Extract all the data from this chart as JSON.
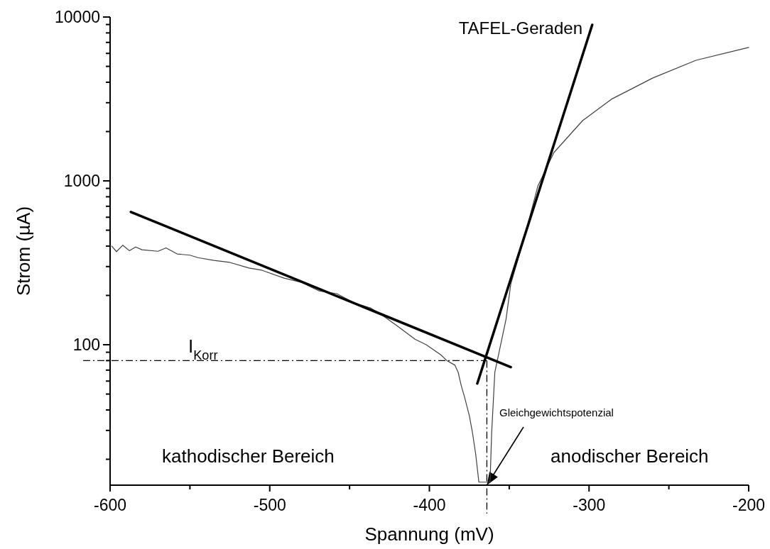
{
  "chart_data": {
    "type": "line",
    "xlabel": "Spannung (mV)",
    "ylabel": "Strom (µA)",
    "log": "y",
    "xlim": [
      -600,
      -200
    ],
    "ylim": [
      13.9,
      10000
    ],
    "xticks": [
      -600,
      {
        "value": -550,
        "label": null
      },
      -500,
      {
        "value": -450,
        "label": null
      },
      -400,
      {
        "value": -350,
        "label": null
      },
      -300,
      {
        "value": -250,
        "label": null
      },
      -200
    ],
    "yticks": [
      {
        "value": 20,
        "label": null
      },
      {
        "value": 30,
        "label": null
      },
      {
        "value": 40,
        "label": null
      },
      {
        "value": 50,
        "label": null
      },
      {
        "value": 60,
        "label": null
      },
      {
        "value": 70,
        "label": null
      },
      {
        "value": 80,
        "label": null
      },
      {
        "value": 90,
        "label": null
      },
      100,
      {
        "value": 200,
        "label": null
      },
      {
        "value": 300,
        "label": null
      },
      {
        "value": 400,
        "label": null
      },
      {
        "value": 500,
        "label": null
      },
      {
        "value": 600,
        "label": null
      },
      {
        "value": 700,
        "label": null
      },
      {
        "value": 800,
        "label": null
      },
      {
        "value": 900,
        "label": null
      },
      1000,
      {
        "value": 2000,
        "label": null
      },
      {
        "value": 3000,
        "label": null
      },
      {
        "value": 4000,
        "label": null
      },
      {
        "value": 5000,
        "label": null
      },
      {
        "value": 6000,
        "label": null
      },
      {
        "value": 7000,
        "label": null
      },
      {
        "value": 8000,
        "label": null
      },
      {
        "value": 9000,
        "label": null
      },
      10000
    ],
    "series": [
      {
        "color": "#404040",
        "x": [
          -599,
          -596,
          -592,
          -588,
          -584,
          -580,
          -570,
          -565,
          -558,
          -550,
          -545,
          -535,
          -525,
          -513,
          -505,
          -491,
          -480,
          -469,
          -458,
          -446,
          -437,
          -429,
          -420,
          -409,
          -402,
          -393,
          -389,
          -384,
          -382,
          -380,
          -378,
          -375,
          -373,
          -371,
          -369,
          -362,
          -361,
          -359,
          -352,
          -349,
          -340,
          -332,
          -322,
          -304,
          -286,
          -260,
          -233,
          -200
        ],
        "values": [
          400,
          370,
          405,
          375,
          395,
          380,
          372,
          390,
          358,
          352,
          340,
          327,
          318,
          294,
          285,
          255,
          240,
          213,
          205,
          178,
          168,
          150,
          130,
          108,
          100,
          87,
          80,
          75,
          68,
          56,
          48,
          37,
          29,
          21.5,
          14.5,
          14.5,
          29,
          68,
          143,
          235,
          473,
          933,
          1490,
          2333,
          3150,
          4250,
          5445,
          6520
        ]
      },
      {
        "color": "#000000",
        "x": [
          -587,
          -349
        ],
        "values": [
          646,
          73
        ]
      },
      {
        "color": "#000000",
        "x": [
          -370,
          -298
        ],
        "values": [
          58,
          8960
        ]
      }
    ],
    "ref_lines": [
      {
        "axis": "y",
        "value": 80,
        "line_style": "dashdot"
      },
      {
        "axis": "x",
        "value": -364,
        "line_style": "dashdot"
      }
    ],
    "annotations": [
      "TAFEL-Geraden",
      "I$_{Korr}$",
      "Gleichgewichtspotenzial",
      "kathodischer Bereich",
      "anodischer Bereich"
    ]
  }
}
